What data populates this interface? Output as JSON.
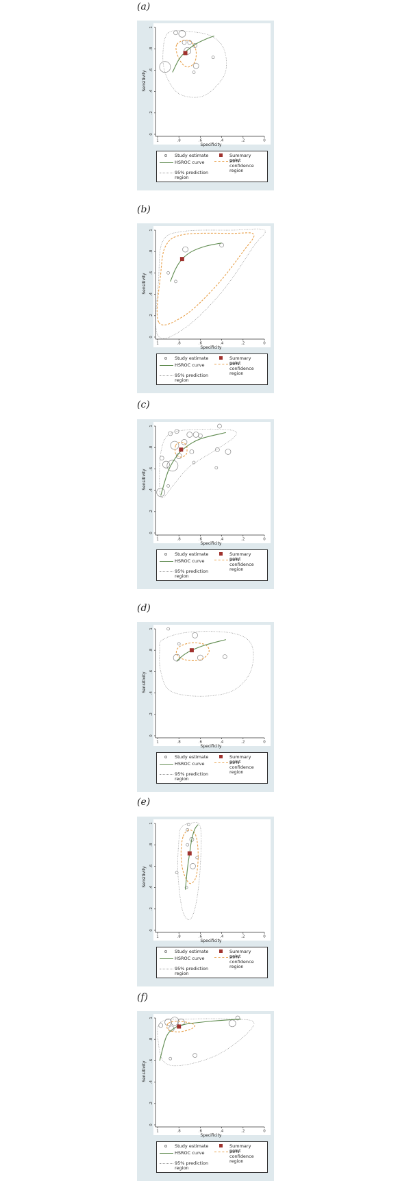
{
  "legend": {
    "study_estimate": "Study estimate",
    "summary_point": "Summary point",
    "hsroc_curve": "HSROC curve",
    "confidence_region": "95% confidence region",
    "prediction_region": "95% prediction region"
  },
  "colors": {
    "panel_bg": "#dfe9ed",
    "hsroc": "#5e8a4e",
    "summary": "#a0322e",
    "confidence": "#e8a04a",
    "prediction": "#999999",
    "study": "#888888"
  },
  "chart_data": [
    {
      "panel": "(a)",
      "type": "scatter",
      "xlabel": "Specificity",
      "ylabel": "Sensitivity",
      "xticks": [
        "1",
        ".8",
        ".6",
        ".4",
        ".2",
        "0"
      ],
      "yticks": [
        "0",
        ".2",
        ".4",
        ".6",
        ".8",
        "1"
      ],
      "xlim": [
        1,
        0
      ],
      "ylim": [
        0,
        1
      ],
      "summary_point": {
        "x": 0.74,
        "y": 0.76
      },
      "hsroc_curve": [
        {
          "x": 0.86,
          "y": 0.58
        },
        {
          "x": 0.8,
          "y": 0.7
        },
        {
          "x": 0.74,
          "y": 0.77
        },
        {
          "x": 0.65,
          "y": 0.84
        },
        {
          "x": 0.55,
          "y": 0.89
        },
        {
          "x": 0.47,
          "y": 0.92
        }
      ],
      "confidence_region": [
        {
          "x": 0.82,
          "y": 0.84
        },
        {
          "x": 0.75,
          "y": 0.88
        },
        {
          "x": 0.68,
          "y": 0.86
        },
        {
          "x": 0.64,
          "y": 0.78
        },
        {
          "x": 0.65,
          "y": 0.68
        },
        {
          "x": 0.71,
          "y": 0.63
        },
        {
          "x": 0.77,
          "y": 0.66
        },
        {
          "x": 0.82,
          "y": 0.76
        }
      ],
      "prediction_region": [
        {
          "x": 0.9,
          "y": 0.95
        },
        {
          "x": 0.7,
          "y": 0.96
        },
        {
          "x": 0.5,
          "y": 0.92
        },
        {
          "x": 0.38,
          "y": 0.8
        },
        {
          "x": 0.36,
          "y": 0.6
        },
        {
          "x": 0.45,
          "y": 0.45
        },
        {
          "x": 0.6,
          "y": 0.35
        },
        {
          "x": 0.8,
          "y": 0.38
        },
        {
          "x": 0.92,
          "y": 0.55
        },
        {
          "x": 0.95,
          "y": 0.75
        }
      ],
      "studies": [
        {
          "x": 0.83,
          "y": 0.95,
          "r": 3
        },
        {
          "x": 0.77,
          "y": 0.94,
          "r": 5
        },
        {
          "x": 0.75,
          "y": 0.86,
          "r": 3
        },
        {
          "x": 0.7,
          "y": 0.86,
          "r": 3
        },
        {
          "x": 0.65,
          "y": 0.83,
          "r": 3
        },
        {
          "x": 0.72,
          "y": 0.78,
          "r": 5
        },
        {
          "x": 0.93,
          "y": 0.63,
          "r": 8
        },
        {
          "x": 0.64,
          "y": 0.64,
          "r": 4
        },
        {
          "x": 0.66,
          "y": 0.58,
          "r": 2
        },
        {
          "x": 0.48,
          "y": 0.72,
          "r": 2
        }
      ]
    },
    {
      "panel": "(b)",
      "type": "scatter",
      "xlabel": "Specificity",
      "ylabel": "Sensitivity",
      "xticks": [
        "1",
        ".8",
        ".6",
        ".4",
        ".2",
        "0"
      ],
      "yticks": [
        "0",
        ".2",
        ".4",
        ".6",
        ".8",
        "1"
      ],
      "xlim": [
        1,
        0
      ],
      "ylim": [
        0,
        1
      ],
      "summary_point": {
        "x": 0.77,
        "y": 0.73
      },
      "hsroc_curve": [
        {
          "x": 0.88,
          "y": 0.52
        },
        {
          "x": 0.83,
          "y": 0.64
        },
        {
          "x": 0.77,
          "y": 0.73
        },
        {
          "x": 0.68,
          "y": 0.8
        },
        {
          "x": 0.55,
          "y": 0.85
        },
        {
          "x": 0.4,
          "y": 0.88
        }
      ],
      "confidence_region": [
        {
          "x": 0.99,
          "y": 0.14
        },
        {
          "x": 0.97,
          "y": 0.6
        },
        {
          "x": 0.92,
          "y": 0.86
        },
        {
          "x": 0.75,
          "y": 0.96
        },
        {
          "x": 0.3,
          "y": 0.97
        },
        {
          "x": 0.1,
          "y": 0.96
        },
        {
          "x": 0.2,
          "y": 0.8
        },
        {
          "x": 0.45,
          "y": 0.48
        },
        {
          "x": 0.75,
          "y": 0.2
        }
      ],
      "prediction_region": [
        {
          "x": 1.0,
          "y": 0.02
        },
        {
          "x": 0.99,
          "y": 0.55
        },
        {
          "x": 0.95,
          "y": 0.9
        },
        {
          "x": 0.75,
          "y": 0.99
        },
        {
          "x": 0.3,
          "y": 1.0
        },
        {
          "x": 0.0,
          "y": 1.0
        },
        {
          "x": 0.1,
          "y": 0.85
        },
        {
          "x": 0.4,
          "y": 0.42
        },
        {
          "x": 0.75,
          "y": 0.08
        }
      ],
      "studies": [
        {
          "x": 0.74,
          "y": 0.82,
          "r": 4
        },
        {
          "x": 0.4,
          "y": 0.86,
          "r": 3
        },
        {
          "x": 0.9,
          "y": 0.6,
          "r": 2
        },
        {
          "x": 0.83,
          "y": 0.52,
          "r": 2
        }
      ]
    },
    {
      "panel": "(c)",
      "type": "scatter",
      "xlabel": "Specificity",
      "ylabel": "Sensitivity",
      "xticks": [
        "1",
        ".8",
        ".6",
        ".4",
        ".2",
        "0"
      ],
      "yticks": [
        "0",
        ".2",
        ".4",
        ".6",
        ".8",
        "1"
      ],
      "xlim": [
        1,
        0
      ],
      "ylim": [
        0,
        1
      ],
      "summary_point": {
        "x": 0.78,
        "y": 0.78
      },
      "hsroc_curve": [
        {
          "x": 0.97,
          "y": 0.35
        },
        {
          "x": 0.9,
          "y": 0.58
        },
        {
          "x": 0.82,
          "y": 0.72
        },
        {
          "x": 0.74,
          "y": 0.8
        },
        {
          "x": 0.6,
          "y": 0.88
        },
        {
          "x": 0.36,
          "y": 0.94
        }
      ],
      "confidence_region": [
        {
          "x": 0.83,
          "y": 0.82
        },
        {
          "x": 0.78,
          "y": 0.85
        },
        {
          "x": 0.73,
          "y": 0.82
        },
        {
          "x": 0.73,
          "y": 0.74
        },
        {
          "x": 0.78,
          "y": 0.71
        },
        {
          "x": 0.83,
          "y": 0.74
        }
      ],
      "prediction_region": [
        {
          "x": 0.98,
          "y": 0.4
        },
        {
          "x": 0.97,
          "y": 0.75
        },
        {
          "x": 0.88,
          "y": 0.93
        },
        {
          "x": 0.6,
          "y": 0.97
        },
        {
          "x": 0.3,
          "y": 0.96
        },
        {
          "x": 0.28,
          "y": 0.9
        },
        {
          "x": 0.45,
          "y": 0.78
        },
        {
          "x": 0.7,
          "y": 0.62
        },
        {
          "x": 0.85,
          "y": 0.45
        },
        {
          "x": 0.95,
          "y": 0.33
        }
      ],
      "studies": [
        {
          "x": 0.42,
          "y": 1.0,
          "r": 3
        },
        {
          "x": 0.82,
          "y": 0.95,
          "r": 3
        },
        {
          "x": 0.88,
          "y": 0.93,
          "r": 3
        },
        {
          "x": 0.7,
          "y": 0.92,
          "r": 4
        },
        {
          "x": 0.64,
          "y": 0.92,
          "r": 4
        },
        {
          "x": 0.6,
          "y": 0.91,
          "r": 3
        },
        {
          "x": 0.75,
          "y": 0.85,
          "r": 4
        },
        {
          "x": 0.84,
          "y": 0.82,
          "r": 6
        },
        {
          "x": 0.44,
          "y": 0.78,
          "r": 3
        },
        {
          "x": 0.68,
          "y": 0.76,
          "r": 3
        },
        {
          "x": 0.8,
          "y": 0.72,
          "r": 4
        },
        {
          "x": 0.96,
          "y": 0.7,
          "r": 3
        },
        {
          "x": 0.92,
          "y": 0.64,
          "r": 5
        },
        {
          "x": 0.86,
          "y": 0.63,
          "r": 8
        },
        {
          "x": 0.66,
          "y": 0.66,
          "r": 2
        },
        {
          "x": 0.34,
          "y": 0.76,
          "r": 4
        },
        {
          "x": 0.45,
          "y": 0.61,
          "r": 2
        },
        {
          "x": 0.9,
          "y": 0.44,
          "r": 2
        },
        {
          "x": 0.97,
          "y": 0.38,
          "r": 6
        }
      ]
    },
    {
      "panel": "(d)",
      "type": "scatter",
      "xlabel": "Specificity",
      "ylabel": "Sensitivity",
      "xticks": [
        "1",
        ".8",
        ".6",
        ".4",
        ".2",
        "0"
      ],
      "yticks": [
        "0",
        ".2",
        ".4",
        ".6",
        ".8",
        "1"
      ],
      "xlim": [
        1,
        0
      ],
      "ylim": [
        0,
        1
      ],
      "summary_point": {
        "x": 0.68,
        "y": 0.8
      },
      "hsroc_curve": [
        {
          "x": 0.82,
          "y": 0.7
        },
        {
          "x": 0.75,
          "y": 0.76
        },
        {
          "x": 0.68,
          "y": 0.8
        },
        {
          "x": 0.55,
          "y": 0.85
        },
        {
          "x": 0.36,
          "y": 0.9
        }
      ],
      "confidence_region": [
        {
          "x": 0.8,
          "y": 0.83
        },
        {
          "x": 0.68,
          "y": 0.87
        },
        {
          "x": 0.55,
          "y": 0.85
        },
        {
          "x": 0.52,
          "y": 0.78
        },
        {
          "x": 0.6,
          "y": 0.71
        },
        {
          "x": 0.74,
          "y": 0.71
        },
        {
          "x": 0.82,
          "y": 0.76
        }
      ],
      "prediction_region": [
        {
          "x": 0.95,
          "y": 0.9
        },
        {
          "x": 0.7,
          "y": 0.97
        },
        {
          "x": 0.3,
          "y": 0.96
        },
        {
          "x": 0.12,
          "y": 0.85
        },
        {
          "x": 0.13,
          "y": 0.6
        },
        {
          "x": 0.3,
          "y": 0.42
        },
        {
          "x": 0.6,
          "y": 0.37
        },
        {
          "x": 0.88,
          "y": 0.42
        },
        {
          "x": 0.97,
          "y": 0.6
        },
        {
          "x": 0.98,
          "y": 0.8
        }
      ],
      "studies": [
        {
          "x": 0.9,
          "y": 1.0,
          "r": 2
        },
        {
          "x": 0.65,
          "y": 0.94,
          "r": 4
        },
        {
          "x": 0.82,
          "y": 0.73,
          "r": 5
        },
        {
          "x": 0.8,
          "y": 0.86,
          "r": 2
        },
        {
          "x": 0.6,
          "y": 0.73,
          "r": 4
        },
        {
          "x": 0.37,
          "y": 0.74,
          "r": 3
        }
      ]
    },
    {
      "panel": "(e)",
      "type": "scatter",
      "xlabel": "Specificity",
      "ylabel": "Sensitivity",
      "xticks": [
        "1",
        ".8",
        ".6",
        ".4",
        ".2",
        "0"
      ],
      "yticks": [
        "0",
        ".2",
        ".4",
        ".6",
        ".8",
        "1"
      ],
      "xlim": [
        1,
        0
      ],
      "ylim": [
        0,
        1
      ],
      "summary_point": {
        "x": 0.7,
        "y": 0.72
      },
      "hsroc_curve": [
        {
          "x": 0.74,
          "y": 0.38
        },
        {
          "x": 0.72,
          "y": 0.58
        },
        {
          "x": 0.7,
          "y": 0.72
        },
        {
          "x": 0.68,
          "y": 0.85
        },
        {
          "x": 0.65,
          "y": 0.95
        },
        {
          "x": 0.62,
          "y": 0.99
        }
      ],
      "confidence_region": [
        {
          "x": 0.76,
          "y": 0.88
        },
        {
          "x": 0.7,
          "y": 0.94
        },
        {
          "x": 0.64,
          "y": 0.88
        },
        {
          "x": 0.62,
          "y": 0.7
        },
        {
          "x": 0.64,
          "y": 0.5
        },
        {
          "x": 0.7,
          "y": 0.44
        },
        {
          "x": 0.76,
          "y": 0.55
        },
        {
          "x": 0.78,
          "y": 0.72
        }
      ],
      "prediction_region": [
        {
          "x": 0.78,
          "y": 0.96
        },
        {
          "x": 0.7,
          "y": 1.0
        },
        {
          "x": 0.6,
          "y": 0.97
        },
        {
          "x": 0.6,
          "y": 0.6
        },
        {
          "x": 0.64,
          "y": 0.25
        },
        {
          "x": 0.7,
          "y": 0.1
        },
        {
          "x": 0.77,
          "y": 0.2
        },
        {
          "x": 0.81,
          "y": 0.55
        },
        {
          "x": 0.8,
          "y": 0.85
        }
      ],
      "studies": [
        {
          "x": 0.71,
          "y": 0.99,
          "r": 2
        },
        {
          "x": 0.72,
          "y": 0.94,
          "r": 2
        },
        {
          "x": 0.68,
          "y": 0.85,
          "r": 3
        },
        {
          "x": 0.72,
          "y": 0.8,
          "r": 2
        },
        {
          "x": 0.63,
          "y": 0.68,
          "r": 2
        },
        {
          "x": 0.67,
          "y": 0.6,
          "r": 4
        },
        {
          "x": 0.82,
          "y": 0.54,
          "r": 2
        },
        {
          "x": 0.73,
          "y": 0.4,
          "r": 2
        }
      ]
    },
    {
      "panel": "(f)",
      "type": "scatter",
      "xlabel": "Specificity",
      "ylabel": "Sensitivity",
      "xticks": [
        "1",
        ".8",
        ".6",
        ".4",
        ".2",
        "0"
      ],
      "yticks": [
        "0",
        ".2",
        ".4",
        ".6",
        ".8",
        "1"
      ],
      "xlim": [
        1,
        0
      ],
      "ylim": [
        0,
        1
      ],
      "summary_point": {
        "x": 0.8,
        "y": 0.92
      },
      "hsroc_curve": [
        {
          "x": 0.98,
          "y": 0.6
        },
        {
          "x": 0.92,
          "y": 0.82
        },
        {
          "x": 0.85,
          "y": 0.9
        },
        {
          "x": 0.75,
          "y": 0.94
        },
        {
          "x": 0.5,
          "y": 0.97
        },
        {
          "x": 0.22,
          "y": 0.99
        }
      ],
      "confidence_region": [
        {
          "x": 0.9,
          "y": 0.95
        },
        {
          "x": 0.8,
          "y": 0.97
        },
        {
          "x": 0.66,
          "y": 0.94
        },
        {
          "x": 0.68,
          "y": 0.9
        },
        {
          "x": 0.8,
          "y": 0.87
        },
        {
          "x": 0.9,
          "y": 0.89
        }
      ],
      "prediction_region": [
        {
          "x": 0.97,
          "y": 0.96
        },
        {
          "x": 0.7,
          "y": 0.99
        },
        {
          "x": 0.3,
          "y": 0.99
        },
        {
          "x": 0.1,
          "y": 0.96
        },
        {
          "x": 0.2,
          "y": 0.82
        },
        {
          "x": 0.45,
          "y": 0.65
        },
        {
          "x": 0.75,
          "y": 0.56
        },
        {
          "x": 0.93,
          "y": 0.58
        },
        {
          "x": 0.99,
          "y": 0.75
        }
      ],
      "studies": [
        {
          "x": 0.97,
          "y": 0.93,
          "r": 3
        },
        {
          "x": 0.9,
          "y": 0.96,
          "r": 5
        },
        {
          "x": 0.84,
          "y": 0.97,
          "r": 6
        },
        {
          "x": 0.78,
          "y": 0.96,
          "r": 5
        },
        {
          "x": 0.87,
          "y": 0.9,
          "r": 4
        },
        {
          "x": 0.3,
          "y": 0.95,
          "r": 5
        },
        {
          "x": 0.25,
          "y": 1.0,
          "r": 3
        },
        {
          "x": 0.65,
          "y": 0.65,
          "r": 3
        },
        {
          "x": 0.88,
          "y": 0.62,
          "r": 2
        }
      ]
    }
  ]
}
